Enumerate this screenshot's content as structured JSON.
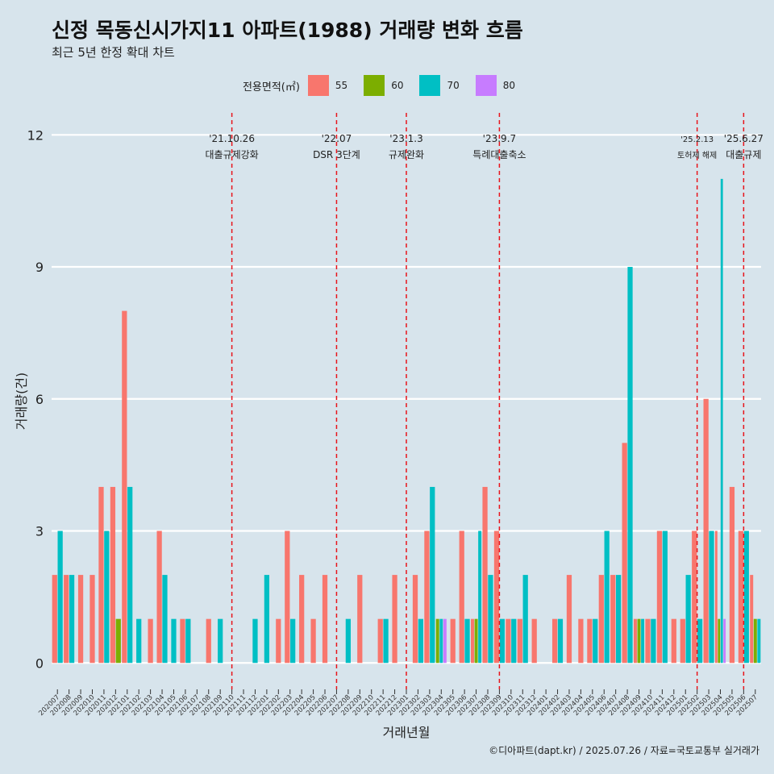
{
  "title": "신정 목동신시가지11 아파트(1988) 거래량 변화 흐름",
  "subtitle": "최근 5년 한정 확대 차트",
  "caption": "©디아파트(dapt.kr) / 2025.07.26 / 자료=국토교통부 실거래가",
  "legend": {
    "title": "전용면적(㎡)",
    "items": [
      {
        "label": "55",
        "color": "#F8766D"
      },
      {
        "label": "60",
        "color": "#7CAE00"
      },
      {
        "label": "70",
        "color": "#00BFC4"
      },
      {
        "label": "80",
        "color": "#C77CFF"
      }
    ]
  },
  "chart_data": {
    "type": "bar",
    "title": "신정 목동신시가지11 아파트(1988) 거래량 변화 흐름",
    "xlabel": "거래년월",
    "ylabel": "거래량(건)",
    "ylim": [
      -0.6,
      12.5
    ],
    "yticks": [
      0,
      3,
      6,
      9,
      12
    ],
    "series_names": [
      "55",
      "60",
      "70",
      "80"
    ],
    "categories": [
      "202007",
      "202008",
      "202009",
      "202010",
      "202011",
      "202012",
      "202101",
      "202102",
      "202103",
      "202104",
      "202105",
      "202106",
      "202107",
      "202108",
      "202109",
      "202110",
      "202111",
      "202112",
      "202201",
      "202202",
      "202203",
      "202204",
      "202205",
      "202206",
      "202207",
      "202208",
      "202209",
      "202210",
      "202211",
      "202212",
      "202301",
      "202302",
      "202303",
      "202304",
      "202305",
      "202306",
      "202307",
      "202308",
      "202309",
      "202310",
      "202311",
      "202312",
      "202401",
      "202402",
      "202403",
      "202404",
      "202405",
      "202406",
      "202407",
      "202408",
      "202409",
      "202410",
      "202411",
      "202412",
      "202501",
      "202502",
      "202503",
      "202504",
      "202505",
      "202506",
      "202507"
    ],
    "data": [
      {
        "m": "202007",
        "v": {
          "55": 2,
          "70": 3
        }
      },
      {
        "m": "202008",
        "v": {
          "55": 2,
          "70": 2
        }
      },
      {
        "m": "202009",
        "v": {
          "55": 2
        }
      },
      {
        "m": "202010",
        "v": {
          "55": 2
        }
      },
      {
        "m": "202011",
        "v": {
          "55": 4,
          "70": 3
        }
      },
      {
        "m": "202012",
        "v": {
          "55": 4,
          "60": 1
        }
      },
      {
        "m": "202101",
        "v": {
          "55": 8,
          "70": 4
        }
      },
      {
        "m": "202102",
        "v": {
          "70": 1
        }
      },
      {
        "m": "202103",
        "v": {
          "55": 1
        }
      },
      {
        "m": "202104",
        "v": {
          "55": 3,
          "70": 2
        }
      },
      {
        "m": "202105",
        "v": {
          "70": 1
        }
      },
      {
        "m": "202106",
        "v": {
          "55": 1,
          "70": 1
        }
      },
      {
        "m": "202108",
        "v": {
          "55": 1
        }
      },
      {
        "m": "202109",
        "v": {
          "70": 1
        }
      },
      {
        "m": "202112",
        "v": {
          "70": 1
        }
      },
      {
        "m": "202201",
        "v": {
          "70": 2
        }
      },
      {
        "m": "202202",
        "v": {
          "55": 1
        }
      },
      {
        "m": "202203",
        "v": {
          "55": 3,
          "70": 1
        }
      },
      {
        "m": "202204",
        "v": {
          "55": 2
        }
      },
      {
        "m": "202205",
        "v": {
          "55": 1
        }
      },
      {
        "m": "202206",
        "v": {
          "55": 2
        }
      },
      {
        "m": "202208",
        "v": {
          "70": 1
        }
      },
      {
        "m": "202209",
        "v": {
          "55": 2
        }
      },
      {
        "m": "202211",
        "v": {
          "55": 1,
          "70": 1
        }
      },
      {
        "m": "202212",
        "v": {
          "55": 2
        }
      },
      {
        "m": "202302",
        "v": {
          "55": 2,
          "70": 1
        }
      },
      {
        "m": "202303",
        "v": {
          "55": 3,
          "70": 4
        }
      },
      {
        "m": "202304",
        "v": {
          "60": 1,
          "70": 1,
          "80": 1
        }
      },
      {
        "m": "202305",
        "v": {
          "55": 1
        }
      },
      {
        "m": "202306",
        "v": {
          "55": 3,
          "70": 1
        }
      },
      {
        "m": "202307",
        "v": {
          "55": 1,
          "60": 1,
          "70": 3
        }
      },
      {
        "m": "202308",
        "v": {
          "55": 4,
          "70": 2
        }
      },
      {
        "m": "202309",
        "v": {
          "55": 3,
          "70": 1
        }
      },
      {
        "m": "202310",
        "v": {
          "55": 1,
          "70": 1
        }
      },
      {
        "m": "202311",
        "v": {
          "55": 1,
          "70": 2
        }
      },
      {
        "m": "202312",
        "v": {
          "55": 1
        }
      },
      {
        "m": "202402",
        "v": {
          "55": 1,
          "70": 1
        }
      },
      {
        "m": "202403",
        "v": {
          "55": 2
        }
      },
      {
        "m": "202404",
        "v": {
          "55": 1
        }
      },
      {
        "m": "202405",
        "v": {
          "55": 1,
          "70": 1
        }
      },
      {
        "m": "202406",
        "v": {
          "55": 2,
          "70": 3
        }
      },
      {
        "m": "202407",
        "v": {
          "55": 2,
          "70": 2
        }
      },
      {
        "m": "202408",
        "v": {
          "55": 5,
          "70": 9
        }
      },
      {
        "m": "202409",
        "v": {
          "55": 1,
          "60": 1,
          "70": 1
        }
      },
      {
        "m": "202410",
        "v": {
          "55": 1,
          "70": 1
        }
      },
      {
        "m": "202411",
        "v": {
          "55": 3,
          "70": 3
        }
      },
      {
        "m": "202412",
        "v": {
          "55": 1
        }
      },
      {
        "m": "202501",
        "v": {
          "55": 1,
          "70": 2
        }
      },
      {
        "m": "202502",
        "v": {
          "55": 3,
          "70": 1
        }
      },
      {
        "m": "202503",
        "v": {
          "55": 6,
          "70": 3
        }
      },
      {
        "m": "202504",
        "v": {
          "55": 3,
          "60": 1,
          "70": 11,
          "80": 1
        }
      },
      {
        "m": "202505",
        "v": {
          "55": 4
        }
      },
      {
        "m": "202506",
        "v": {
          "55": 3,
          "70": 3
        }
      },
      {
        "m": "202507",
        "v": {
          "55": 2,
          "60": 1,
          "70": 1
        }
      }
    ],
    "events": [
      {
        "at": "202110",
        "date": "'21.10.26",
        "label": "대출규제강화"
      },
      {
        "at": "202207",
        "date": "'22.07",
        "label": "DSR 3단계"
      },
      {
        "at": "202301",
        "date": "'23.1.3",
        "label": "규제완화"
      },
      {
        "at": "202309",
        "date": "'23.9.7",
        "label": "특례대출축소"
      },
      {
        "at": "202502",
        "date": "'25.2.13",
        "label": "토허제 해제"
      },
      {
        "at": "202506",
        "date": "'25.6.27",
        "label": "대출규제"
      }
    ]
  }
}
